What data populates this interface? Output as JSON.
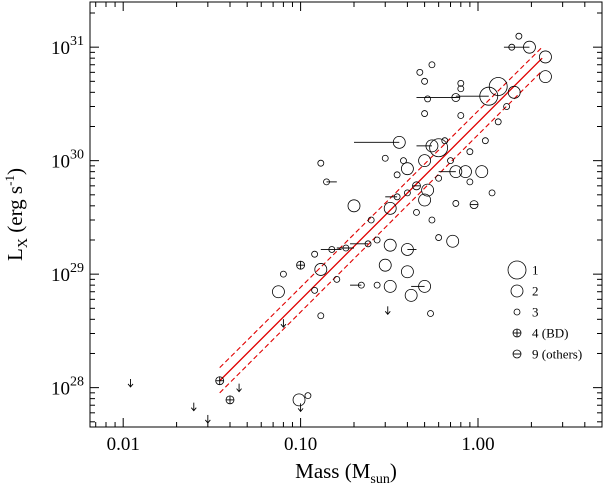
{
  "chart_data": {
    "type": "scatter",
    "x_scale": "log",
    "y_scale": "log",
    "xlim": [
      0.0065,
      5.0
    ],
    "ylim": [
      4.5e+27,
      2.5e+31
    ],
    "xlabel": {
      "main": "Mass (M",
      "sub": "sun",
      "close": ")"
    },
    "ylabel": {
      "main": "L",
      "sub": "X",
      "mid": " (erg s",
      "sup": "-1",
      "close": ")"
    },
    "x_ticks": [
      {
        "value": 0.01,
        "label": "0.01"
      },
      {
        "value": 0.1,
        "label": "0.10"
      },
      {
        "value": 1.0,
        "label": "1.00"
      }
    ],
    "y_ticks": [
      {
        "value": 1e+28,
        "base": "10",
        "exp": "28"
      },
      {
        "value": 1e+29,
        "base": "10",
        "exp": "29"
      },
      {
        "value": 1e+30,
        "base": "10",
        "exp": "30"
      },
      {
        "value": 1e+31,
        "base": "10",
        "exp": "31"
      }
    ],
    "legend": {
      "position": "bottom-right",
      "entries": [
        {
          "label": "1",
          "symbol": "circle-large"
        },
        {
          "label": "2",
          "symbol": "circle-medium"
        },
        {
          "label": "3",
          "symbol": "circle-small"
        },
        {
          "label": "4 (BD)",
          "symbol": "circle-cross"
        },
        {
          "label": "9 (others)",
          "symbol": "circle-dash"
        }
      ]
    },
    "fit": {
      "x_range": [
        0.035,
        2.3
      ],
      "y_range": [
        1.15e+28,
        8e+30
      ],
      "lower_dashed": [
        [
          0.035,
          9e+27
        ],
        [
          2.3,
          6.2e+30
        ]
      ],
      "upper_dashed": [
        [
          0.035,
          1.5e+28
        ],
        [
          2.3,
          1e+31
        ]
      ]
    },
    "points": [
      {
        "x": 2.4,
        "y": 8.2e+30,
        "symbol": "circle-medium"
      },
      {
        "x": 2.4,
        "y": 5.5e+30,
        "symbol": "circle-medium"
      },
      {
        "x": 1.95,
        "y": 1e+31,
        "symbol": "circle-medium",
        "xerr": [
          0.55,
          0
        ]
      },
      {
        "x": 1.55,
        "y": 1e+31,
        "symbol": "circle-small"
      },
      {
        "x": 1.6,
        "y": 4e+30,
        "symbol": "circle-medium"
      },
      {
        "x": 1.7,
        "y": 1.25e+31,
        "symbol": "circle-small"
      },
      {
        "x": 1.45,
        "y": 3e+30,
        "symbol": "circle-small"
      },
      {
        "x": 1.3,
        "y": 4.5e+30,
        "symbol": "circle-large"
      },
      {
        "x": 1.15,
        "y": 3.7e+30,
        "symbol": "circle-large",
        "xerr": [
          0.4,
          0
        ]
      },
      {
        "x": 1.3,
        "y": 2.2e+30,
        "symbol": "circle-small"
      },
      {
        "x": 1.1,
        "y": 1.5e+30,
        "symbol": "circle-small"
      },
      {
        "x": 0.8,
        "y": 4.8e+30,
        "symbol": "circle-small"
      },
      {
        "x": 0.8,
        "y": 4.3e+30,
        "symbol": "circle-small"
      },
      {
        "x": 0.75,
        "y": 3.6e+30,
        "symbol": "circle-dash",
        "xerr": [
          0.3,
          0
        ]
      },
      {
        "x": 0.8,
        "y": 2.5e+30,
        "symbol": "circle-small"
      },
      {
        "x": 0.9,
        "y": 1.2e+30,
        "symbol": "circle-small"
      },
      {
        "x": 0.65,
        "y": 1.5e+30,
        "symbol": "circle-small"
      },
      {
        "x": 0.6,
        "y": 1.3e+30,
        "symbol": "circle-large"
      },
      {
        "x": 0.55,
        "y": 1.35e+30,
        "symbol": "circle-medium",
        "xerr": [
          0.1,
          0
        ]
      },
      {
        "x": 0.5,
        "y": 1e+30,
        "symbol": "circle-medium"
      },
      {
        "x": 0.55,
        "y": 7e+30,
        "symbol": "circle-small"
      },
      {
        "x": 0.47,
        "y": 6e+30,
        "symbol": "circle-small"
      },
      {
        "x": 0.5,
        "y": 5e+30,
        "symbol": "circle-small"
      },
      {
        "x": 0.52,
        "y": 3.5e+30,
        "symbol": "circle-small"
      },
      {
        "x": 0.5,
        "y": 2.6e+30,
        "symbol": "circle-small"
      },
      {
        "x": 0.36,
        "y": 1.45e+30,
        "symbol": "circle-medium",
        "xerr": [
          0.16,
          0
        ]
      },
      {
        "x": 0.38,
        "y": 1e+30,
        "symbol": "circle-small"
      },
      {
        "x": 0.4,
        "y": 8.5e+29,
        "symbol": "circle-medium"
      },
      {
        "x": 0.35,
        "y": 7.5e+29,
        "symbol": "circle-small"
      },
      {
        "x": 0.3,
        "y": 1.05e+30,
        "symbol": "circle-small"
      },
      {
        "x": 0.45,
        "y": 6e+29,
        "symbol": "circle-dash"
      },
      {
        "x": 0.52,
        "y": 5.5e+29,
        "symbol": "circle-medium"
      },
      {
        "x": 0.6,
        "y": 7e+29,
        "symbol": "circle-small"
      },
      {
        "x": 0.75,
        "y": 8e+29,
        "symbol": "circle-medium",
        "xerr": [
          0.15,
          0
        ]
      },
      {
        "x": 0.85,
        "y": 8e+29,
        "symbol": "circle-medium"
      },
      {
        "x": 1.05,
        "y": 8e+29,
        "symbol": "circle-medium"
      },
      {
        "x": 0.7,
        "y": 1e+30,
        "symbol": "circle-small"
      },
      {
        "x": 0.9,
        "y": 6.5e+29,
        "symbol": "circle-small"
      },
      {
        "x": 1.2,
        "y": 5.2e+29,
        "symbol": "circle-small"
      },
      {
        "x": 0.95,
        "y": 4.1e+29,
        "symbol": "circle-dash"
      },
      {
        "x": 0.75,
        "y": 4.2e+29,
        "symbol": "circle-small"
      },
      {
        "x": 0.5,
        "y": 4.5e+29,
        "symbol": "circle-medium"
      },
      {
        "x": 0.45,
        "y": 3.5e+29,
        "symbol": "circle-small"
      },
      {
        "x": 0.55,
        "y": 3e+29,
        "symbol": "circle-small"
      },
      {
        "x": 0.4,
        "y": 5.2e+29,
        "symbol": "circle-small"
      },
      {
        "x": 0.35,
        "y": 4.8e+29,
        "symbol": "circle-small",
        "xerr": [
          0.05,
          0
        ]
      },
      {
        "x": 0.32,
        "y": 3.8e+29,
        "symbol": "circle-medium"
      },
      {
        "x": 0.25,
        "y": 3e+29,
        "symbol": "circle-small"
      },
      {
        "x": 0.2,
        "y": 4e+29,
        "symbol": "circle-medium"
      },
      {
        "x": 0.13,
        "y": 9.5e+29,
        "symbol": "circle-small"
      },
      {
        "x": 0.14,
        "y": 6.5e+29,
        "symbol": "circle-small",
        "xerr": [
          0,
          0.02
        ]
      },
      {
        "x": 0.27,
        "y": 2e+29,
        "symbol": "circle-small"
      },
      {
        "x": 0.24,
        "y": 1.85e+29,
        "symbol": "circle-small",
        "xerr": [
          0.05,
          0
        ]
      },
      {
        "x": 0.32,
        "y": 1.8e+29,
        "symbol": "circle-medium"
      },
      {
        "x": 0.4,
        "y": 1.65e+29,
        "symbol": "circle-medium",
        "xerr": [
          0,
          0.05
        ]
      },
      {
        "x": 0.6,
        "y": 2.1e+29,
        "symbol": "circle-small"
      },
      {
        "x": 0.72,
        "y": 1.95e+29,
        "symbol": "circle-medium"
      },
      {
        "x": 0.18,
        "y": 1.7e+29,
        "symbol": "circle-small",
        "xerr": [
          0.02,
          0.02
        ]
      },
      {
        "x": 0.15,
        "y": 1.65e+29,
        "symbol": "circle-small",
        "xerr": [
          0.02,
          0.02
        ]
      },
      {
        "x": 0.12,
        "y": 1.5e+29,
        "symbol": "circle-small"
      },
      {
        "x": 0.1,
        "y": 1.2e+29,
        "symbol": "circle-cross"
      },
      {
        "x": 0.13,
        "y": 1.1e+29,
        "symbol": "circle-medium"
      },
      {
        "x": 0.3,
        "y": 1.2e+29,
        "symbol": "circle-medium"
      },
      {
        "x": 0.4,
        "y": 1.05e+29,
        "symbol": "circle-medium"
      },
      {
        "x": 0.08,
        "y": 1e+29,
        "symbol": "circle-small"
      },
      {
        "x": 0.16,
        "y": 9e+28,
        "symbol": "circle-small"
      },
      {
        "x": 0.22,
        "y": 8e+28,
        "symbol": "circle-small",
        "xerr": [
          0.03,
          0
        ]
      },
      {
        "x": 0.27,
        "y": 8e+28,
        "symbol": "circle-small"
      },
      {
        "x": 0.32,
        "y": 7.8e+28,
        "symbol": "circle-medium"
      },
      {
        "x": 0.5,
        "y": 7.8e+28,
        "symbol": "circle-medium",
        "xerr": [
          0.08,
          0
        ]
      },
      {
        "x": 0.42,
        "y": 6.5e+28,
        "symbol": "circle-medium"
      },
      {
        "x": 0.075,
        "y": 7e+28,
        "symbol": "circle-medium"
      },
      {
        "x": 0.12,
        "y": 7.2e+28,
        "symbol": "circle-small"
      },
      {
        "x": 0.54,
        "y": 4.5e+28,
        "symbol": "circle-small"
      },
      {
        "x": 0.13,
        "y": 4.3e+28,
        "symbol": "circle-small"
      },
      {
        "x": 0.035,
        "y": 1.15e+28,
        "symbol": "circle-cross"
      },
      {
        "x": 0.04,
        "y": 7.8e+27,
        "symbol": "circle-cross"
      },
      {
        "x": 0.098,
        "y": 7.8e+27,
        "symbol": "circle-medium"
      },
      {
        "x": 0.11,
        "y": 8.5e+27,
        "symbol": "circle-small"
      }
    ],
    "upper_limits": [
      {
        "x": 0.011,
        "y": 1.1e+28
      },
      {
        "x": 0.025,
        "y": 6.8e+27
      },
      {
        "x": 0.03,
        "y": 5.3e+27
      },
      {
        "x": 0.045,
        "y": 1e+28
      },
      {
        "x": 0.08,
        "y": 3.7e+28
      },
      {
        "x": 0.1,
        "y": 6.7e+27
      },
      {
        "x": 0.31,
        "y": 4.8e+28
      }
    ]
  }
}
